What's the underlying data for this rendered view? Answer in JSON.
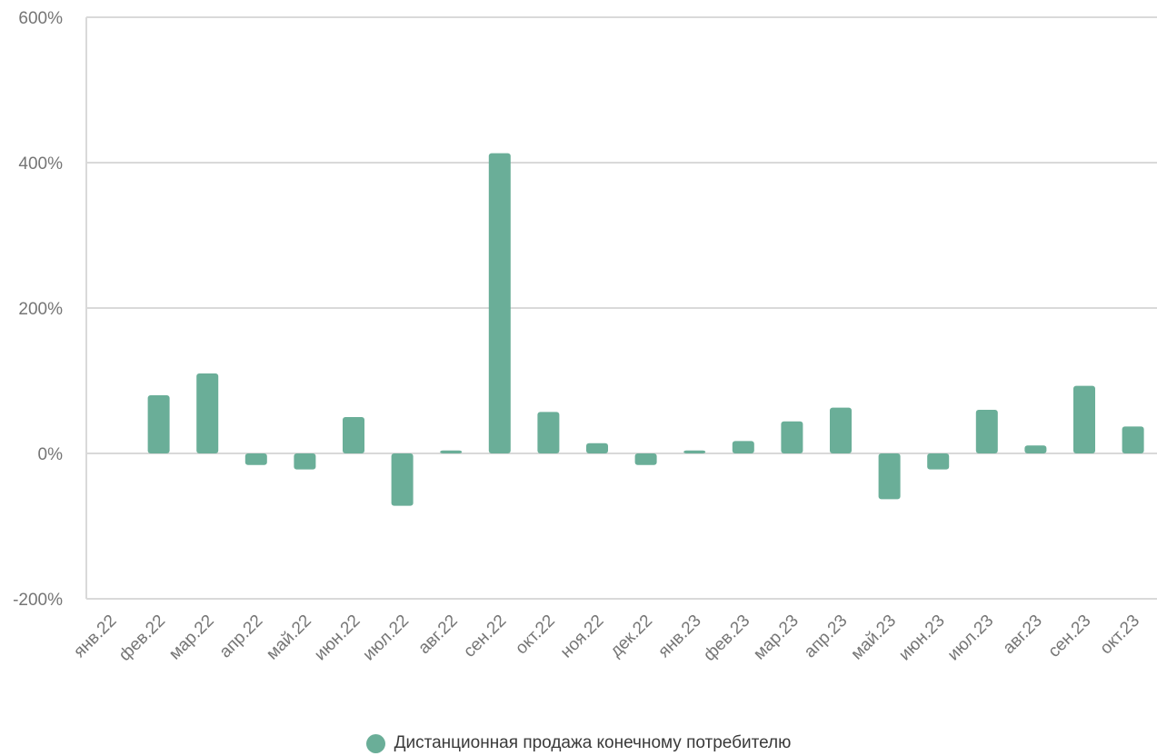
{
  "chart_data": {
    "type": "bar",
    "categories": [
      "янв.22",
      "фев.22",
      "мар.22",
      "апр.22",
      "май.22",
      "июн.22",
      "июл.22",
      "авг.22",
      "сен.22",
      "окт.22",
      "ноя.22",
      "дек.22",
      "янв.23",
      "фев.23",
      "мар.23",
      "апр.23",
      "май.23",
      "июн.23",
      "июл.23",
      "авг.23",
      "сен.23",
      "окт.23"
    ],
    "series": [
      {
        "name": "Дистанционная продажа конечному потребителю",
        "values": [
          0,
          80,
          110,
          -16,
          -22,
          50,
          -72,
          4,
          413,
          57,
          14,
          -16,
          4,
          17,
          44,
          63,
          -63,
          -22,
          60,
          11,
          93,
          37
        ]
      }
    ],
    "ylim": [
      -200,
      600
    ],
    "yticks": [
      -200,
      0,
      200,
      400,
      600
    ],
    "ytick_labels": [
      "-200%",
      "0%",
      "200%",
      "400%",
      "600%"
    ],
    "title": "",
    "xlabel": "",
    "ylabel": "",
    "grid": true,
    "legend_position": "bottom-center",
    "colors": {
      "bar": "#6aae98",
      "grid": "#d9d9d9",
      "text": "#757575",
      "legend_text": "#3a3a3a"
    }
  }
}
